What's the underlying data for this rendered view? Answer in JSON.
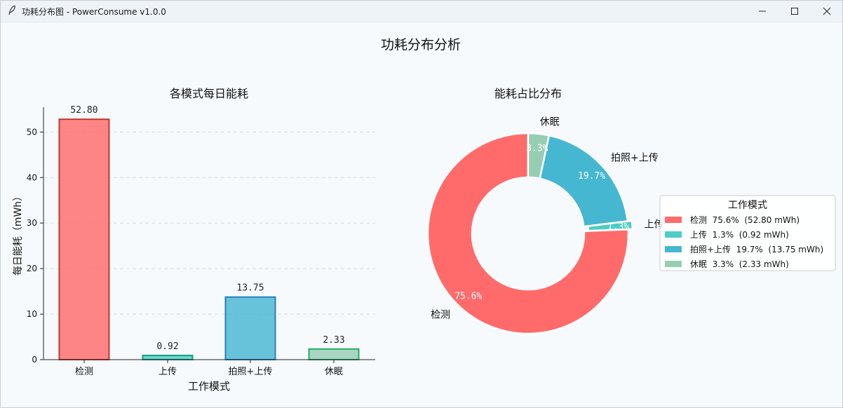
{
  "window": {
    "title": "功耗分布图 - PowerConsume v1.0.0",
    "minimize_symbol": "minimize-icon",
    "maximize_symbol": "maximize-icon",
    "close_symbol": "close-icon"
  },
  "figure": {
    "suptitle": "功耗分布分析"
  },
  "chart_data": [
    {
      "type": "bar",
      "title": "各模式每日能耗",
      "xlabel": "工作模式",
      "ylabel": "每日能耗（mWh）",
      "categories": [
        "检测",
        "上传",
        "拍照+上传",
        "休眠"
      ],
      "values": [
        52.8,
        0.92,
        13.75,
        2.33
      ],
      "value_labels": [
        "52.80",
        "0.92",
        "13.75",
        "2.33"
      ],
      "yticks": [
        0,
        10,
        20,
        30,
        40,
        50
      ],
      "ylim": [
        0,
        55.44
      ],
      "grid": "y, dashed",
      "colors": [
        "#ff6b6b",
        "#4ecdc4",
        "#45b7d1",
        "#96ceb4"
      ],
      "edge_colors": [
        "#c0392b",
        "#16a085",
        "#2980b9",
        "#27ae60"
      ]
    },
    {
      "type": "pie",
      "donut": true,
      "title": "能耗占比分布",
      "labels": [
        "检测",
        "上传",
        "拍照+上传",
        "休眠"
      ],
      "values": [
        52.8,
        0.92,
        13.75,
        2.33
      ],
      "percent_labels": [
        "75.6%",
        "1.3%",
        "19.7%",
        "3.3%"
      ],
      "colors": [
        "#ff6b6b",
        "#4ecdc4",
        "#45b7d1",
        "#96ceb4"
      ],
      "legend": {
        "title": "工作模式",
        "placement": "right",
        "entries": [
          "检测  75.6%  (52.80 mWh)",
          "上传  1.3%  (0.92 mWh)",
          "拍照+上传  19.7%  (13.75 mWh)",
          "休眠  3.3%  (2.33 mWh)"
        ]
      }
    }
  ]
}
